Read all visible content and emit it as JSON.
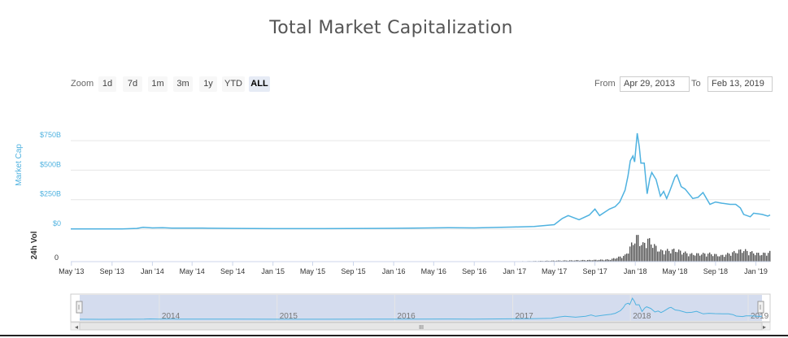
{
  "title": "Total Market Capitalization",
  "zoom": {
    "label": "Zoom",
    "buttons": [
      "1d",
      "7d",
      "1m",
      "3m",
      "1y",
      "YTD",
      "ALL"
    ],
    "active": "ALL"
  },
  "range": {
    "from_label": "From",
    "from_value": "Apr 29, 2013",
    "to_label": "To",
    "to_value": "Feb 13, 2019"
  },
  "colors": {
    "series": "#4fb2e0",
    "volume": "#555555",
    "navigator_mask": "#ccd6eb",
    "axis_text_y": "#4fb2e0",
    "grid": "#e6e6e6"
  },
  "chart_data": {
    "type": "line",
    "x_tick_labels": [
      "May '13",
      "Sep '13",
      "Jan '14",
      "May '14",
      "Sep '14",
      "Jan '15",
      "May '15",
      "Sep '15",
      "Jan '16",
      "May '16",
      "Sep '16",
      "Jan '17",
      "May '17",
      "Sep '17",
      "Jan '18",
      "May '18",
      "Sep '18",
      "Jan '19"
    ],
    "x_tick_dates": [
      "2013-05-01",
      "2013-09-01",
      "2014-01-01",
      "2014-05-01",
      "2014-09-01",
      "2015-01-01",
      "2015-05-01",
      "2015-09-01",
      "2016-01-01",
      "2016-05-01",
      "2016-09-01",
      "2017-01-01",
      "2017-05-01",
      "2017-09-01",
      "2018-01-01",
      "2018-05-01",
      "2018-09-01",
      "2019-01-01"
    ],
    "x_range": [
      "2013-04-29",
      "2019-02-13"
    ],
    "series": [
      {
        "axis_label": "Market Cap",
        "y_tick_labels": [
          "$0",
          "$250B",
          "$500B",
          "$750B"
        ],
        "ylim": [
          0,
          875
        ],
        "unit": "billion USD",
        "points": [
          [
            "2013-04-29",
            1.6
          ],
          [
            "2013-07-01",
            1.2
          ],
          [
            "2013-10-01",
            2.0
          ],
          [
            "2013-11-15",
            6
          ],
          [
            "2013-12-04",
            15
          ],
          [
            "2014-01-01",
            10
          ],
          [
            "2014-02-01",
            12
          ],
          [
            "2014-03-01",
            8
          ],
          [
            "2014-06-01",
            8
          ],
          [
            "2014-09-01",
            6
          ],
          [
            "2015-01-01",
            4
          ],
          [
            "2015-06-01",
            4
          ],
          [
            "2015-11-05",
            6
          ],
          [
            "2016-01-01",
            7
          ],
          [
            "2016-06-15",
            12
          ],
          [
            "2016-09-01",
            10
          ],
          [
            "2017-01-01",
            18
          ],
          [
            "2017-03-01",
            23
          ],
          [
            "2017-05-01",
            38
          ],
          [
            "2017-05-25",
            90
          ],
          [
            "2017-06-12",
            115
          ],
          [
            "2017-07-15",
            80
          ],
          [
            "2017-08-15",
            120
          ],
          [
            "2017-09-01",
            170
          ],
          [
            "2017-09-15",
            115
          ],
          [
            "2017-10-15",
            170
          ],
          [
            "2017-11-01",
            190
          ],
          [
            "2017-11-15",
            230
          ],
          [
            "2017-12-01",
            330
          ],
          [
            "2017-12-10",
            450
          ],
          [
            "2017-12-17",
            580
          ],
          [
            "2017-12-25",
            620
          ],
          [
            "2017-12-30",
            570
          ],
          [
            "2018-01-07",
            813
          ],
          [
            "2018-01-13",
            700
          ],
          [
            "2018-01-18",
            560
          ],
          [
            "2018-01-28",
            560
          ],
          [
            "2018-02-06",
            300
          ],
          [
            "2018-02-14",
            430
          ],
          [
            "2018-02-20",
            480
          ],
          [
            "2018-03-05",
            420
          ],
          [
            "2018-03-18",
            280
          ],
          [
            "2018-03-28",
            320
          ],
          [
            "2018-04-06",
            260
          ],
          [
            "2018-04-15",
            320
          ],
          [
            "2018-05-01",
            440
          ],
          [
            "2018-05-07",
            460
          ],
          [
            "2018-05-20",
            360
          ],
          [
            "2018-06-01",
            340
          ],
          [
            "2018-06-24",
            260
          ],
          [
            "2018-07-10",
            270
          ],
          [
            "2018-07-25",
            310
          ],
          [
            "2018-08-15",
            210
          ],
          [
            "2018-09-01",
            230
          ],
          [
            "2018-09-20",
            220
          ],
          [
            "2018-10-15",
            210
          ],
          [
            "2018-11-01",
            210
          ],
          [
            "2018-11-15",
            180
          ],
          [
            "2018-11-25",
            125
          ],
          [
            "2018-12-15",
            105
          ],
          [
            "2018-12-25",
            135
          ],
          [
            "2019-01-07",
            130
          ],
          [
            "2019-01-20",
            125
          ],
          [
            "2019-02-06",
            110
          ],
          [
            "2019-02-13",
            120
          ]
        ]
      },
      {
        "axis_label": "24h Vol",
        "y_tick_labels": [
          "0"
        ],
        "unit": "billion USD",
        "type": "column",
        "points": [
          [
            "2013-06-01",
            0.2
          ],
          [
            "2014-01-01",
            0.4
          ],
          [
            "2015-01-01",
            0.3
          ],
          [
            "2016-01-01",
            0.4
          ],
          [
            "2017-01-01",
            0.5
          ],
          [
            "2017-05-15",
            2
          ],
          [
            "2017-08-15",
            3
          ],
          [
            "2017-10-15",
            4
          ],
          [
            "2017-12-01",
            12
          ],
          [
            "2017-12-22",
            35
          ],
          [
            "2018-01-07",
            48
          ],
          [
            "2018-01-20",
            30
          ],
          [
            "2018-02-06",
            42
          ],
          [
            "2018-03-15",
            20
          ],
          [
            "2018-05-01",
            22
          ],
          [
            "2018-06-15",
            14
          ],
          [
            "2018-08-15",
            15
          ],
          [
            "2018-09-15",
            11
          ],
          [
            "2018-11-20",
            22
          ],
          [
            "2018-12-20",
            17
          ],
          [
            "2019-01-15",
            14
          ],
          [
            "2019-02-13",
            18
          ]
        ]
      }
    ],
    "navigator": {
      "year_labels": [
        "2014",
        "2015",
        "2016",
        "2017",
        "2018",
        "2019"
      ],
      "year_dates": [
        "2014-01-01",
        "2015-01-01",
        "2016-01-01",
        "2017-01-01",
        "2018-01-01",
        "2019-01-01"
      ],
      "scrollbar_grip": "III"
    }
  }
}
